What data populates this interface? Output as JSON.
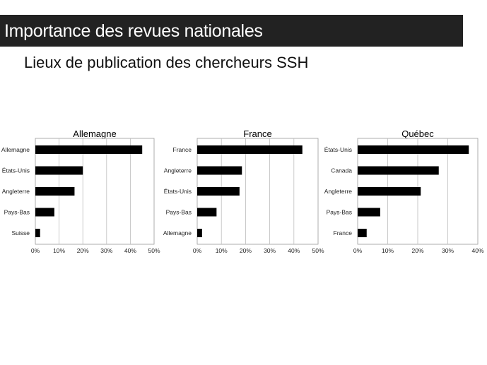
{
  "header": {
    "title": "Importance des revues nationales",
    "subtitle": "Lieux de publication des chercheurs SSH"
  },
  "colors": {
    "title_bar": "#222222",
    "bar_fill": "#000000",
    "grid": "#bdbdbd"
  },
  "chart_data": [
    {
      "type": "bar",
      "orientation": "horizontal",
      "title": "Allemagne",
      "categories": [
        "Allemagne",
        "États-Unis",
        "Angleterre",
        "Pays-Bas",
        "Suisse"
      ],
      "values": [
        45,
        20,
        16.5,
        8,
        2
      ],
      "xlim": [
        0,
        50
      ],
      "xticks": [
        "0%",
        "10%",
        "20%",
        "30%",
        "40%",
        "50%"
      ],
      "grid": true,
      "legend": "none"
    },
    {
      "type": "bar",
      "orientation": "horizontal",
      "title": "France",
      "categories": [
        "France",
        "Angleterre",
        "États-Unis",
        "Pays-Bas",
        "Allemagne"
      ],
      "values": [
        43.5,
        18.5,
        17.5,
        8,
        2
      ],
      "xlim": [
        0,
        50
      ],
      "xticks": [
        "0%",
        "10%",
        "20%",
        "30%",
        "40%",
        "50%"
      ],
      "grid": true,
      "legend": "none"
    },
    {
      "type": "bar",
      "orientation": "horizontal",
      "title": "Québec",
      "categories": [
        "États-Unis",
        "Canada",
        "Angleterre",
        "Pays-Bas",
        "France"
      ],
      "values": [
        37,
        27,
        21,
        7.5,
        3
      ],
      "xlim": [
        0,
        40
      ],
      "xticks": [
        "0%",
        "10%",
        "20%",
        "30%",
        "40%"
      ],
      "grid": true,
      "legend": "none"
    }
  ]
}
